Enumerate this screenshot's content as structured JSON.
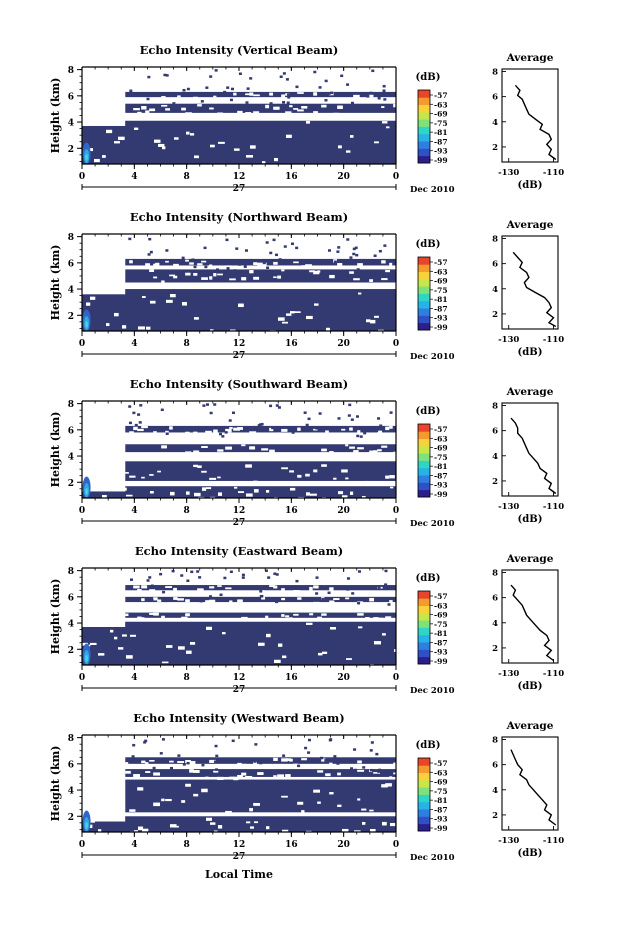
{
  "colors": {
    "echo_fill": "#333a72",
    "colorbar": [
      "#2b1f8c",
      "#3050c8",
      "#2f7fe0",
      "#27b3e8",
      "#2fd6c4",
      "#7de27a",
      "#c7e64a",
      "#f7d23a",
      "#f79a2e",
      "#e8452a"
    ]
  },
  "colorbar_label": "(dB)",
  "colorbar_ticks": [
    "-57",
    "-63",
    "-69",
    "-75",
    "-81",
    "-87",
    "-93",
    "-99"
  ],
  "avg_xlabel": "(dB)",
  "xaxis_bottom_label": "Local Time",
  "chart_data": [
    {
      "type": "heatmap",
      "title": "Echo Intensity (Vertical Beam)",
      "ylabel": "Height (km)",
      "xticks": [
        "0",
        "4",
        "8",
        "12",
        "16",
        "20",
        "0"
      ],
      "yticks": [
        "2",
        "4",
        "6",
        "8"
      ],
      "ylim": [
        0.8,
        8.2
      ],
      "xlim": [
        0,
        24
      ],
      "date_day": "27",
      "date_month": "Dec 2010",
      "echo_layers": [
        [
          0.8,
          4.1
        ],
        [
          4.7,
          5.4
        ],
        [
          5.9,
          6.3
        ]
      ],
      "average": {
        "title": "Average",
        "xticks": [
          "-130",
          "-110"
        ],
        "xlim": [
          -133,
          -108
        ],
        "yticks": [
          "2",
          "4",
          "6",
          "8"
        ],
        "height": [
          6.9,
          6.5,
          6.1,
          5.8,
          5.4,
          5.0,
          4.6,
          4.2,
          3.8,
          3.4,
          3.0,
          2.6,
          2.2,
          1.8,
          1.4,
          1.0
        ],
        "db": [
          -127,
          -125,
          -126,
          -124,
          -123,
          -122,
          -121,
          -118,
          -115,
          -116,
          -112,
          -111,
          -113,
          -111,
          -112,
          -109
        ]
      }
    },
    {
      "type": "heatmap",
      "title": "Echo Intensity (Northward Beam)",
      "ylabel": "Height (km)",
      "xticks": [
        "0",
        "4",
        "8",
        "12",
        "16",
        "20",
        "0"
      ],
      "yticks": [
        "2",
        "4",
        "6",
        "8"
      ],
      "ylim": [
        0.8,
        8.2
      ],
      "xlim": [
        0,
        24
      ],
      "date_day": "27",
      "date_month": "Dec 2010",
      "echo_layers": [
        [
          0.8,
          4.0
        ],
        [
          4.5,
          5.5
        ],
        [
          5.8,
          6.3
        ]
      ],
      "average": {
        "title": "Average",
        "xticks": [
          "-130",
          "-110"
        ],
        "xlim": [
          -133,
          -108
        ],
        "yticks": [
          "2",
          "4",
          "6",
          "8"
        ],
        "height": [
          6.9,
          6.5,
          6.1,
          5.7,
          5.3,
          4.9,
          4.5,
          4.1,
          3.7,
          3.3,
          2.9,
          2.5,
          2.1,
          1.7,
          1.3,
          1.0
        ],
        "db": [
          -128,
          -126,
          -124,
          -125,
          -122,
          -121,
          -123,
          -122,
          -118,
          -114,
          -112,
          -111,
          -113,
          -110,
          -112,
          -109
        ]
      }
    },
    {
      "type": "heatmap",
      "title": "Echo Intensity (Southward Beam)",
      "ylabel": "Height (km)",
      "xticks": [
        "0",
        "4",
        "8",
        "12",
        "16",
        "20",
        "0"
      ],
      "yticks": [
        "2",
        "4",
        "6",
        "8"
      ],
      "ylim": [
        0.8,
        8.2
      ],
      "xlim": [
        0,
        24
      ],
      "date_day": "27",
      "date_month": "Dec 2010",
      "echo_layers": [
        [
          0.8,
          1.7
        ],
        [
          2.1,
          3.6
        ],
        [
          4.3,
          4.9
        ],
        [
          5.8,
          6.3
        ]
      ],
      "average": {
        "title": "Average",
        "xticks": [
          "-130",
          "-110"
        ],
        "xlim": [
          -133,
          -108
        ],
        "yticks": [
          "2",
          "4",
          "6",
          "8"
        ],
        "height": [
          7.0,
          6.6,
          6.2,
          5.8,
          5.4,
          5.0,
          4.6,
          4.2,
          3.8,
          3.4,
          3.0,
          2.6,
          2.2,
          1.8,
          1.4,
          1.0
        ],
        "db": [
          -129,
          -127,
          -126,
          -126,
          -124,
          -123,
          -122,
          -121,
          -119,
          -117,
          -116,
          -113,
          -114,
          -111,
          -112,
          -109
        ]
      }
    },
    {
      "type": "heatmap",
      "title": "Echo Intensity (Eastward Beam)",
      "ylabel": "Height (km)",
      "xticks": [
        "0",
        "4",
        "8",
        "12",
        "16",
        "20",
        "0"
      ],
      "yticks": [
        "2",
        "4",
        "6",
        "8"
      ],
      "ylim": [
        0.8,
        8.2
      ],
      "xlim": [
        0,
        24
      ],
      "date_day": "27",
      "date_month": "Dec 2010",
      "echo_layers": [
        [
          0.8,
          4.1
        ],
        [
          4.4,
          4.8
        ],
        [
          5.6,
          6.0
        ],
        [
          6.5,
          6.9
        ]
      ],
      "average": {
        "title": "Average",
        "xticks": [
          "-130",
          "-110"
        ],
        "xlim": [
          -133,
          -108
        ],
        "yticks": [
          "2",
          "4",
          "6",
          "8"
        ],
        "height": [
          7.0,
          6.6,
          6.2,
          5.8,
          5.4,
          5.0,
          4.6,
          4.2,
          3.8,
          3.4,
          3.0,
          2.6,
          2.2,
          1.8,
          1.4,
          1.0
        ],
        "db": [
          -129,
          -127,
          -128,
          -126,
          -124,
          -123,
          -122,
          -120,
          -118,
          -116,
          -113,
          -112,
          -114,
          -111,
          -113,
          -110
        ]
      }
    },
    {
      "type": "heatmap",
      "title": "Echo Intensity (Westward Beam)",
      "ylabel": "Height (km)",
      "xticks": [
        "0",
        "4",
        "8",
        "12",
        "16",
        "20",
        "0"
      ],
      "yticks": [
        "2",
        "4",
        "6",
        "8"
      ],
      "ylim": [
        0.8,
        8.2
      ],
      "xlim": [
        0,
        24
      ],
      "date_day": "27",
      "date_month": "Dec 2010",
      "echo_layers": [
        [
          0.8,
          2.0
        ],
        [
          2.3,
          4.8
        ],
        [
          5.0,
          5.6
        ],
        [
          6.0,
          6.5
        ]
      ],
      "average": {
        "title": "Average",
        "xticks": [
          "-130",
          "-110"
        ],
        "xlim": [
          -133,
          -108
        ],
        "yticks": [
          "2",
          "4",
          "6",
          "8"
        ],
        "height": [
          7.2,
          6.8,
          6.4,
          6.0,
          5.6,
          5.2,
          4.8,
          4.4,
          4.0,
          3.6,
          3.2,
          2.8,
          2.4,
          2.0,
          1.6,
          1.2
        ],
        "db": [
          -129,
          -128,
          -127,
          -126,
          -124,
          -125,
          -122,
          -121,
          -119,
          -117,
          -115,
          -113,
          -114,
          -111,
          -112,
          -109
        ]
      }
    }
  ]
}
